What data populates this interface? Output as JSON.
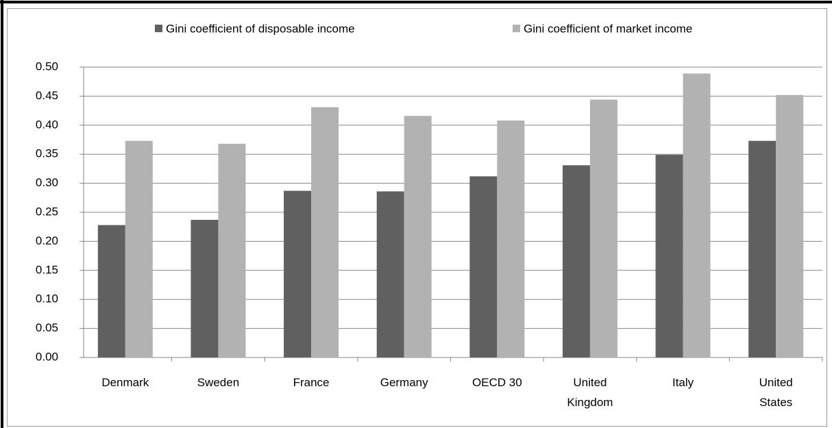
{
  "chart_data": {
    "type": "bar",
    "categories": [
      "Denmark",
      "Sweden",
      "France",
      "Germany",
      "OECD 30",
      "United\nKingdom",
      "Italy",
      "United\nStates"
    ],
    "series": [
      {
        "name": "Gini coefficient of disposable income",
        "color": "#606060",
        "values": [
          0.228,
          0.237,
          0.287,
          0.286,
          0.312,
          0.331,
          0.349,
          0.373
        ]
      },
      {
        "name": "Gini coefficient of market income",
        "color": "#b2b2b2",
        "values": [
          0.373,
          0.368,
          0.431,
          0.416,
          0.408,
          0.444,
          0.489,
          0.452
        ]
      }
    ],
    "ylim": [
      0,
      0.5
    ],
    "yticks": [
      {
        "value": 0,
        "label": "0.00"
      },
      0.05,
      {
        "value": 0.1,
        "label": "0.10"
      },
      0.15,
      {
        "value": 0.2,
        "label": "0.20"
      },
      0.25,
      {
        "value": 0.3,
        "label": "0.30"
      },
      0.35,
      {
        "value": 0.4,
        "label": "0.40"
      },
      0.45,
      {
        "value": 0.5,
        "label": "0.50"
      }
    ],
    "grid": true,
    "legend": "top"
  }
}
